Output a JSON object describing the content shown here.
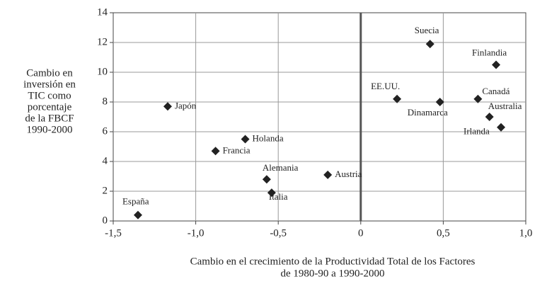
{
  "chart_data": {
    "type": "scatter",
    "ylabel": [
      "Cambio en",
      "inversión en",
      "TIC como",
      "porcentaje",
      "de la FBCF",
      "1990-2000"
    ],
    "xlabel": [
      "Cambio en el crecimiento de la Productividad Total de los Factores",
      "de 1980-90 a 1990-2000"
    ],
    "labels": [
      "España",
      "Japón",
      "Holanda",
      "Francia",
      "Alemania",
      "Italia",
      "Austria",
      "EE.UU.",
      "Suecia",
      "Dinamarca",
      "Canadá",
      "Finlandia",
      "Australia",
      "Irlanda"
    ],
    "x": [
      -1.35,
      -1.17,
      -0.7,
      -0.88,
      -0.57,
      -0.54,
      -0.2,
      0.22,
      0.42,
      0.48,
      0.71,
      0.82,
      0.78,
      0.85
    ],
    "values": [
      0.4,
      7.7,
      5.5,
      4.7,
      2.8,
      1.9,
      3.1,
      8.2,
      11.9,
      8.0,
      8.2,
      10.5,
      7.0,
      6.3
    ],
    "color": "#222222",
    "xlim": [
      -1.5,
      1.0
    ],
    "xticks": [
      {
        "value": -1.5,
        "label": "-1,5"
      },
      {
        "value": -1.0,
        "label": "-1,0"
      },
      {
        "value": -0.5,
        "label": "-0,5"
      },
      0,
      {
        "value": 0.5,
        "label": "0,5"
      },
      {
        "value": 1.0,
        "label": "1,0"
      }
    ],
    "ylim": [
      0,
      14
    ],
    "yticks": [
      0,
      2,
      4,
      6,
      8,
      10,
      12,
      14
    ],
    "grid": true
  }
}
